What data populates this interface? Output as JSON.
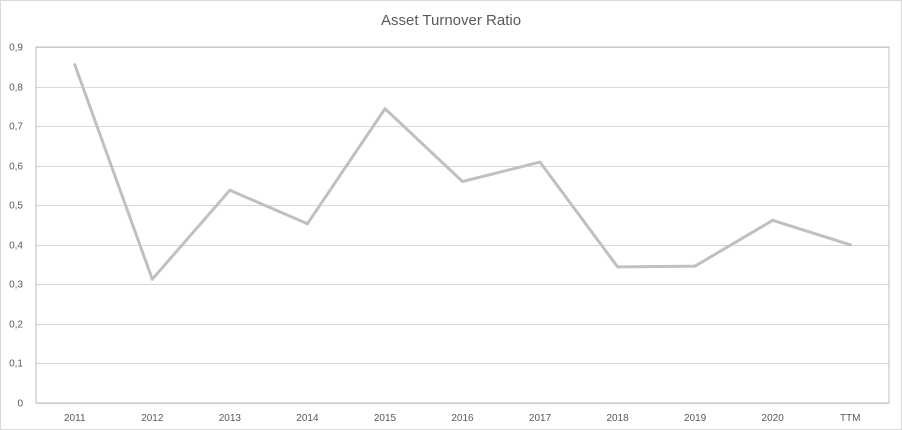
{
  "chart_data": {
    "type": "line",
    "title": "Asset Turnover Ratio",
    "xlabel": "",
    "ylabel": "",
    "categories": [
      "2011",
      "2012",
      "2013",
      "2014",
      "2015",
      "2016",
      "2017",
      "2018",
      "2019",
      "2020",
      "TTM"
    ],
    "series": [
      {
        "values": [
          0.855,
          0.313,
          0.538,
          0.453,
          0.744,
          0.56,
          0.609,
          0.344,
          0.346,
          0.462,
          0.4
        ],
        "color": "#c0c0c0"
      }
    ],
    "ylim": [
      0,
      0.9
    ],
    "yticks": [
      "0",
      "0,1",
      "0,2",
      "0,3",
      "0,4",
      "0,5",
      "0,6",
      "0,7",
      "0,8",
      "0,9"
    ],
    "grid": true,
    "legend": "none"
  }
}
